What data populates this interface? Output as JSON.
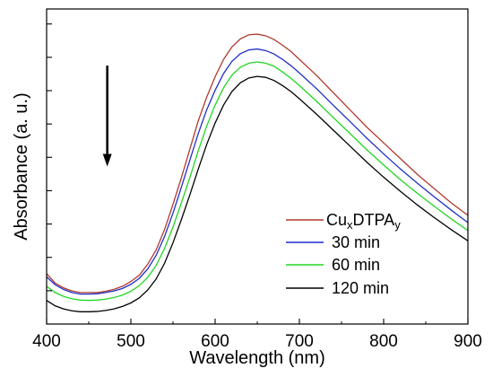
{
  "chart_data": {
    "type": "line",
    "title": "",
    "xlabel": "Wavelength (nm)",
    "ylabel": "Absorbance (a. u.)",
    "xlim": [
      400,
      900
    ],
    "ylim": [
      0,
      1
    ],
    "x_ticks": [
      400,
      500,
      600,
      700,
      800,
      900
    ],
    "x_tick_labels": [
      "400",
      "500",
      "600",
      "700",
      "800",
      "900"
    ],
    "y_tick_labels_shown": false,
    "grid": false,
    "legend_position": "bottom-right",
    "legend": {
      "first_entry": {
        "base1": "Cu",
        "sub1": "x",
        "base2": "DTPA",
        "sub2": "y"
      },
      "entries": [
        "30 min",
        "60 min",
        "120 min"
      ]
    },
    "annotation": {
      "type": "arrow",
      "direction": "down",
      "x": 472,
      "y_from": 0.82,
      "y_to": 0.5
    },
    "series": [
      {
        "label": "CuxDTPAy",
        "color": "#b03a2e",
        "x": [
          400,
          410,
          420,
          430,
          440,
          450,
          460,
          470,
          480,
          490,
          500,
          510,
          520,
          530,
          540,
          550,
          560,
          570,
          580,
          590,
          600,
          610,
          620,
          630,
          640,
          650,
          660,
          670,
          680,
          690,
          700,
          720,
          740,
          760,
          780,
          800,
          820,
          840,
          860,
          880,
          900
        ],
        "y": [
          0.16,
          0.13,
          0.115,
          0.105,
          0.1,
          0.1,
          0.1,
          0.104,
          0.11,
          0.12,
          0.135,
          0.155,
          0.19,
          0.235,
          0.3,
          0.38,
          0.465,
          0.555,
          0.645,
          0.72,
          0.785,
          0.84,
          0.88,
          0.905,
          0.918,
          0.92,
          0.915,
          0.903,
          0.885,
          0.865,
          0.84,
          0.79,
          0.735,
          0.68,
          0.625,
          0.575,
          0.525,
          0.475,
          0.43,
          0.385,
          0.345
        ]
      },
      {
        "label": "30 min",
        "color": "#1f2fc8",
        "x": [
          400,
          410,
          420,
          430,
          440,
          450,
          460,
          470,
          480,
          490,
          500,
          510,
          520,
          530,
          540,
          550,
          560,
          570,
          580,
          590,
          600,
          610,
          620,
          630,
          640,
          650,
          660,
          670,
          680,
          690,
          700,
          720,
          740,
          760,
          780,
          800,
          820,
          840,
          860,
          880,
          900
        ],
        "y": [
          0.15,
          0.125,
          0.11,
          0.1,
          0.095,
          0.095,
          0.096,
          0.1,
          0.105,
          0.113,
          0.126,
          0.145,
          0.175,
          0.218,
          0.278,
          0.352,
          0.435,
          0.52,
          0.605,
          0.68,
          0.742,
          0.795,
          0.834,
          0.858,
          0.87,
          0.873,
          0.868,
          0.857,
          0.84,
          0.82,
          0.797,
          0.748,
          0.695,
          0.643,
          0.59,
          0.54,
          0.492,
          0.447,
          0.404,
          0.362,
          0.322
        ]
      },
      {
        "label": "60 min",
        "color": "#22d622",
        "x": [
          400,
          410,
          420,
          430,
          440,
          450,
          460,
          470,
          480,
          490,
          500,
          510,
          520,
          530,
          540,
          550,
          560,
          570,
          580,
          590,
          600,
          610,
          620,
          630,
          640,
          650,
          660,
          670,
          680,
          690,
          700,
          720,
          740,
          760,
          780,
          800,
          820,
          840,
          860,
          880,
          900
        ],
        "y": [
          0.12,
          0.1,
          0.088,
          0.08,
          0.076,
          0.075,
          0.076,
          0.079,
          0.084,
          0.092,
          0.104,
          0.122,
          0.148,
          0.186,
          0.24,
          0.308,
          0.385,
          0.465,
          0.55,
          0.628,
          0.695,
          0.75,
          0.79,
          0.815,
          0.828,
          0.832,
          0.828,
          0.818,
          0.8,
          0.78,
          0.757,
          0.708,
          0.656,
          0.605,
          0.553,
          0.505,
          0.458,
          0.415,
          0.374,
          0.334,
          0.297
        ]
      },
      {
        "label": "120 min",
        "color": "#000000",
        "x": [
          400,
          410,
          420,
          430,
          440,
          450,
          460,
          470,
          480,
          490,
          500,
          510,
          520,
          530,
          540,
          550,
          560,
          570,
          580,
          590,
          600,
          610,
          620,
          630,
          640,
          650,
          660,
          670,
          680,
          690,
          700,
          720,
          740,
          760,
          780,
          800,
          820,
          840,
          860,
          880,
          900
        ],
        "y": [
          0.075,
          0.058,
          0.048,
          0.042,
          0.039,
          0.039,
          0.04,
          0.043,
          0.048,
          0.056,
          0.067,
          0.083,
          0.108,
          0.143,
          0.193,
          0.258,
          0.332,
          0.41,
          0.492,
          0.57,
          0.638,
          0.695,
          0.738,
          0.766,
          0.781,
          0.786,
          0.783,
          0.773,
          0.757,
          0.738,
          0.715,
          0.667,
          0.616,
          0.565,
          0.514,
          0.466,
          0.421,
          0.378,
          0.338,
          0.3,
          0.264
        ]
      }
    ]
  }
}
